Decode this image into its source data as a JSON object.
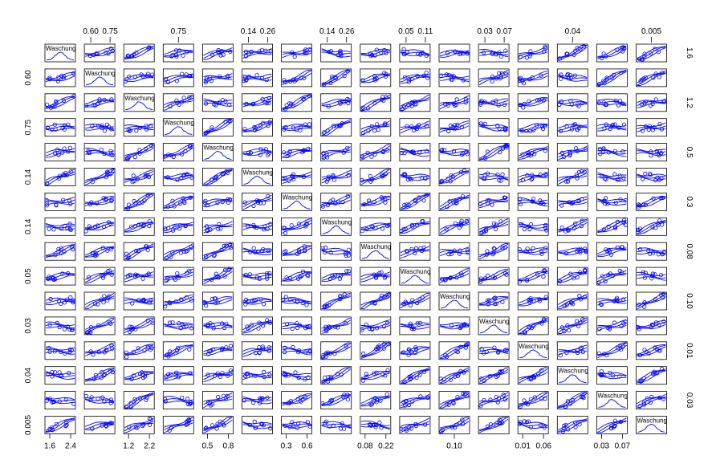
{
  "chart_data": {
    "type": "scatter",
    "title": "",
    "matrix_size": 16,
    "diagonal_label": "Waschung",
    "series_color": "#0000ff",
    "frame_color": "#000000",
    "top_axis_labels": [
      {
        "column": 1,
        "labels": [
          "0.60",
          "0.75"
        ]
      },
      {
        "column": 3,
        "labels": [
          "0.75"
        ]
      },
      {
        "column": 5,
        "labels": [
          "0.14",
          "0.26"
        ]
      },
      {
        "column": 7,
        "labels": [
          "0.14",
          "0.26"
        ]
      },
      {
        "column": 9,
        "labels": [
          "0.05",
          "0.11"
        ]
      },
      {
        "column": 11,
        "labels": [
          "0.03",
          "0.07"
        ]
      },
      {
        "column": 13,
        "labels": [
          "0.04"
        ]
      },
      {
        "column": 15,
        "labels": [
          "0.005"
        ]
      }
    ],
    "bottom_axis_labels": [
      {
        "column": 0,
        "labels": [
          "1.6",
          "2.4"
        ]
      },
      {
        "column": 2,
        "labels": [
          "1.2",
          "2.2"
        ]
      },
      {
        "column": 4,
        "labels": [
          "0.5",
          "0.8"
        ]
      },
      {
        "column": 6,
        "labels": [
          "0.3",
          "0.6"
        ]
      },
      {
        "column": 8,
        "labels": [
          "0.08",
          "0.22"
        ]
      },
      {
        "column": 10,
        "labels": [
          "0.10"
        ]
      },
      {
        "column": 12,
        "labels": [
          "0.01",
          "0.06"
        ]
      },
      {
        "column": 14,
        "labels": [
          "0.03",
          "0.07"
        ]
      }
    ],
    "left_axis_labels": [
      {
        "row": 1,
        "labels": [
          "0.60"
        ]
      },
      {
        "row": 3,
        "labels": [
          "0.75"
        ]
      },
      {
        "row": 5,
        "labels": [
          "0.14"
        ]
      },
      {
        "row": 7,
        "labels": [
          "0.14"
        ]
      },
      {
        "row": 9,
        "labels": [
          "0.05"
        ]
      },
      {
        "row": 11,
        "labels": [
          "0.03"
        ]
      },
      {
        "row": 13,
        "labels": [
          "0.04"
        ]
      },
      {
        "row": 15,
        "labels": [
          "0.005"
        ]
      }
    ],
    "right_axis_labels": [
      {
        "row": 0,
        "labels": [
          "1.6"
        ]
      },
      {
        "row": 2,
        "labels": [
          "1.2"
        ]
      },
      {
        "row": 4,
        "labels": [
          "0.5"
        ]
      },
      {
        "row": 6,
        "labels": [
          "0.3"
        ]
      },
      {
        "row": 8,
        "labels": [
          "0.08"
        ]
      },
      {
        "row": 10,
        "labels": [
          "0.10"
        ]
      },
      {
        "row": 12,
        "labels": [
          "0.01"
        ]
      },
      {
        "row": 14,
        "labels": [
          "0.03"
        ]
      }
    ],
    "grid": false,
    "legend": "none"
  }
}
